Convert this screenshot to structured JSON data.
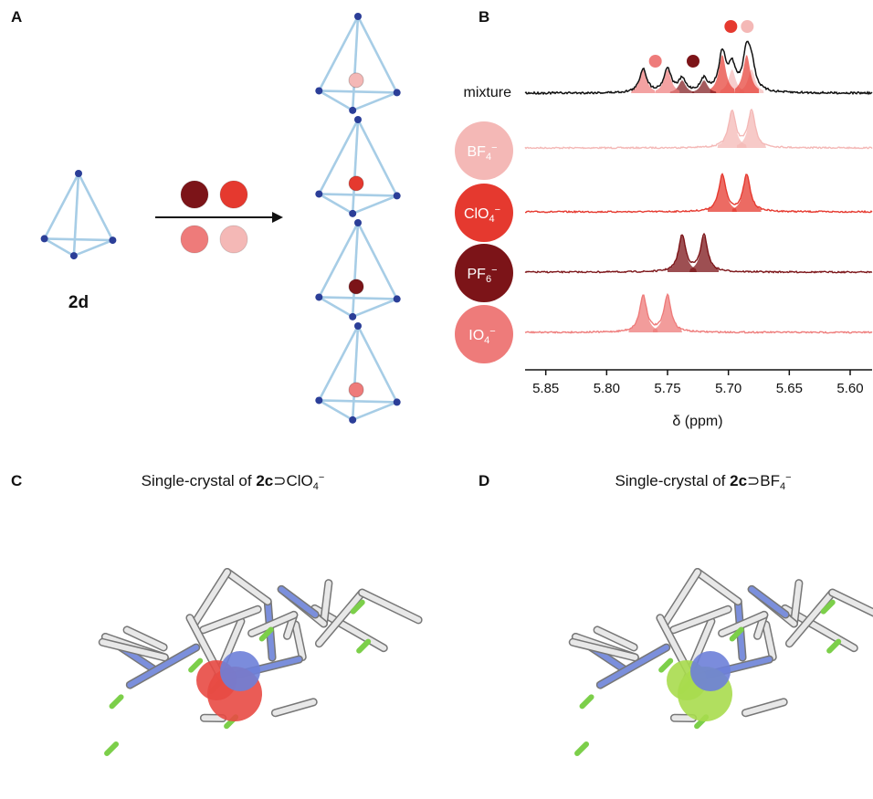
{
  "panels": {
    "a": {
      "label": "A",
      "compound": "2d"
    },
    "b": {
      "label": "B",
      "mixture_label": "mixture",
      "xlim": [
        5.867,
        5.582
      ],
      "xticks": [
        {
          "value": 5.85,
          "label": "5.85"
        },
        {
          "value": 5.8,
          "label": "5.80"
        },
        {
          "value": 5.75,
          "label": "5.75"
        },
        {
          "value": 5.7,
          "label": "5.70"
        },
        {
          "value": 5.65,
          "label": "5.65"
        },
        {
          "value": 5.6,
          "label": "5.60"
        }
      ],
      "xlabel": "δ (ppm)",
      "spectra": [
        {
          "anion": {
            "base": "BF",
            "sub": "4",
            "sup": "−"
          },
          "color": "#f4b8b6",
          "peaks": [
            5.697,
            5.681
          ]
        },
        {
          "anion": {
            "base": "ClO",
            "sub": "4",
            "sup": "−"
          },
          "color": "#e5392f",
          "peaks": [
            5.705,
            5.685
          ]
        },
        {
          "anion": {
            "base": "PF",
            "sub": "6",
            "sup": "−"
          },
          "color": "#7c1418",
          "peaks": [
            5.738,
            5.72
          ]
        },
        {
          "anion": {
            "base": "IO",
            "sub": "4",
            "sup": "−"
          },
          "color": "#ee7b7a",
          "peaks": [
            5.77,
            5.75
          ]
        }
      ]
    },
    "c": {
      "label": "C",
      "title": {
        "prefix": "Single-crystal of ",
        "bold": "2c",
        "suffix": "⊃ClO",
        "sub": "4",
        "sup": "−"
      }
    },
    "d": {
      "label": "D",
      "title": {
        "prefix": "Single-crystal of ",
        "bold": "2c",
        "suffix": "⊃BF",
        "sub": "4",
        "sup": "−"
      }
    }
  }
}
